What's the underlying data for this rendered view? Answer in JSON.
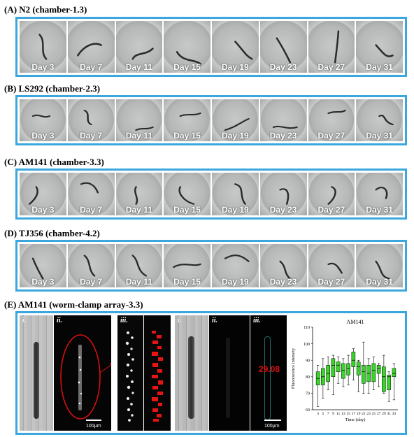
{
  "panels": [
    {
      "title": "(A) N2 (chamber-1.3)",
      "days": [
        "Day 3",
        "Day 7",
        "Day 11",
        "Day 15",
        "Day 19",
        "Day 23",
        "Day 27",
        "Day 31"
      ]
    },
    {
      "title": "(B) LS292 (chamber-2.3)",
      "days": [
        "Day 3",
        "Day 7",
        "Day 11",
        "Day 15",
        "Day 19",
        "Day 23",
        "Day 27",
        "Day 31"
      ]
    },
    {
      "title": "(C) AM141 (chamber-3.3)",
      "days": [
        "Day 3",
        "Day 7",
        "Day 11",
        "Day 15",
        "Day 19",
        "Day 23",
        "Day 27",
        "Day 31"
      ]
    },
    {
      "title": "(D) TJ356 (chamber-4.2)",
      "days": [
        "Day 3",
        "Day 7",
        "Day 11",
        "Day 15",
        "Day 19",
        "Day 23",
        "Day 27",
        "Day 31"
      ]
    }
  ],
  "panel_e": {
    "title": "(E) AM141 (worm-clamp array-3.3)",
    "left_labels": [
      "i.",
      "ii.",
      "iii."
    ],
    "right_labels": [
      "i.",
      "ii.",
      "iii."
    ],
    "scale_left": "100μm",
    "scale_right": "100μm",
    "intensity_value": "29.08"
  },
  "chart_data": {
    "type": "box",
    "title": "AM141",
    "xlabel": "Time  (day)",
    "ylabel": "Fluorescence intensity",
    "ylim": [
      60,
      110
    ],
    "yticks": [
      60,
      70,
      80,
      90,
      100,
      110
    ],
    "categories": [
      "3",
      "5",
      "7",
      "9",
      "11",
      "13",
      "15",
      "17",
      "19",
      "21",
      "23",
      "25",
      "27",
      "29",
      "31",
      "33"
    ],
    "boxes": [
      {
        "min": 62,
        "q1": 75,
        "median": 79,
        "q3": 83,
        "max": 87
      },
      {
        "min": 67,
        "q1": 75,
        "median": 80,
        "q3": 85,
        "max": 91
      },
      {
        "min": 72,
        "q1": 77,
        "median": 82,
        "q3": 87,
        "max": 92
      },
      {
        "min": 69,
        "q1": 80,
        "median": 87,
        "q3": 91,
        "max": 93
      },
      {
        "min": 76,
        "q1": 83,
        "median": 87,
        "q3": 89,
        "max": 92
      },
      {
        "min": 74,
        "q1": 79,
        "median": 84,
        "q3": 88,
        "max": 91
      },
      {
        "min": 75,
        "q1": 81,
        "median": 85,
        "q3": 88,
        "max": 93
      },
      {
        "min": 78,
        "q1": 86,
        "median": 90,
        "q3": 95,
        "max": 97
      },
      {
        "min": 71,
        "q1": 81,
        "median": 86,
        "q3": 89,
        "max": 90
      },
      {
        "min": 70,
        "q1": 76,
        "median": 83,
        "q3": 87,
        "max": 101
      },
      {
        "min": 70,
        "q1": 77,
        "median": 82,
        "q3": 87,
        "max": 91
      },
      {
        "min": 72,
        "q1": 77,
        "median": 84,
        "q3": 88,
        "max": 92
      },
      {
        "min": 74,
        "q1": 82,
        "median": 85,
        "q3": 87,
        "max": 88
      },
      {
        "min": 70,
        "q1": 71,
        "median": 80,
        "q3": 86,
        "max": 93
      },
      {
        "min": 65,
        "q1": 72,
        "median": 80,
        "q3": 81,
        "max": 83
      },
      {
        "min": 66,
        "q1": 80,
        "median": 82,
        "q3": 85,
        "max": 88
      }
    ],
    "box_color": "#39d62a"
  }
}
